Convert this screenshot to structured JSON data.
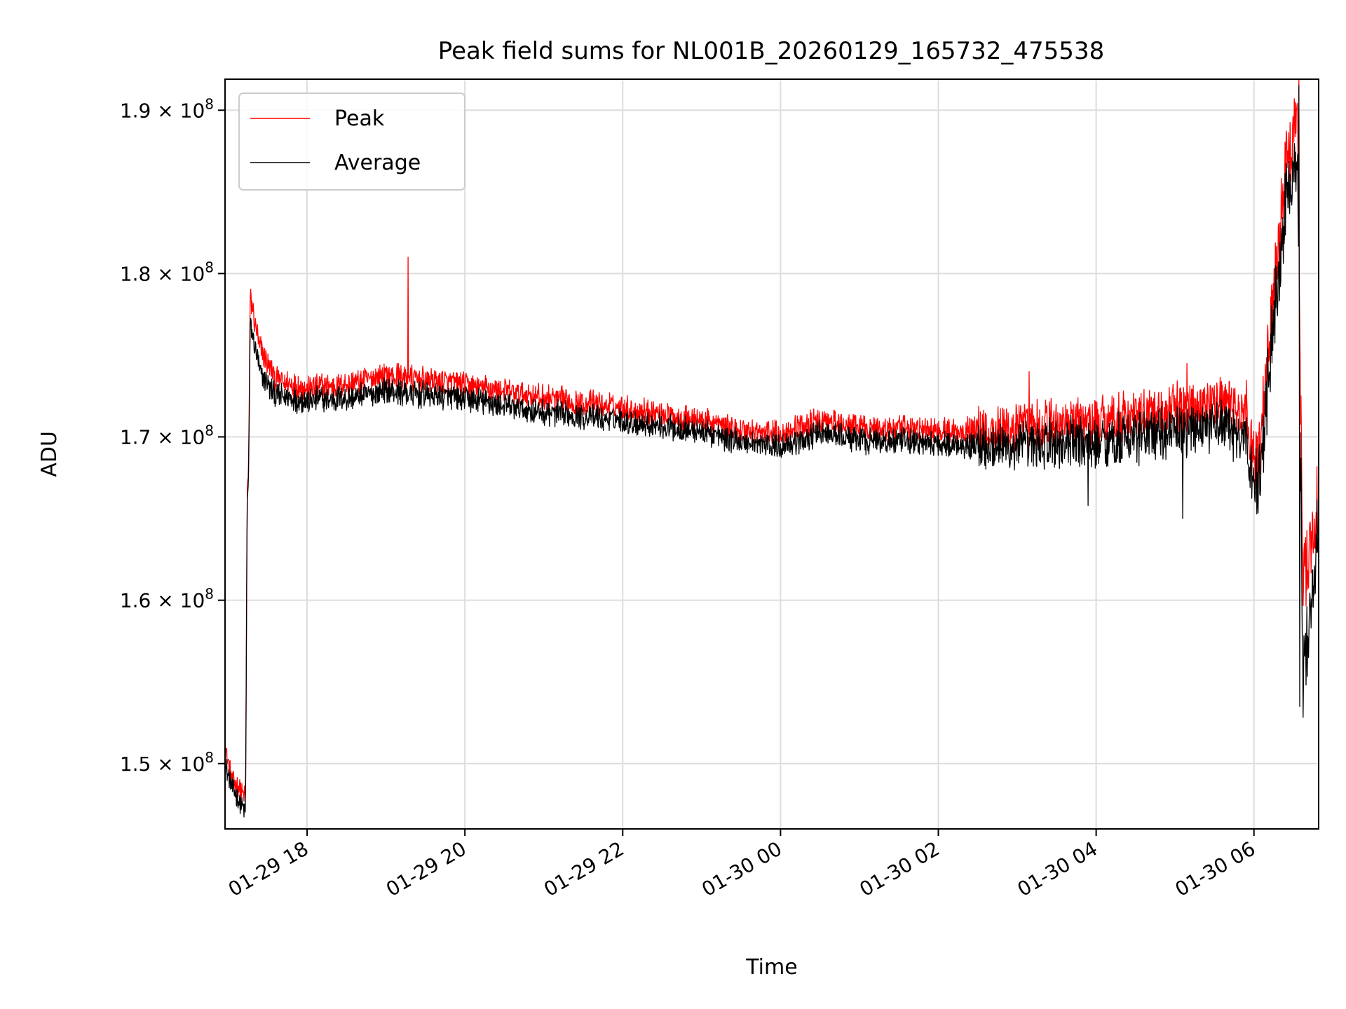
{
  "chart_data": {
    "type": "line",
    "title": "Peak field sums for NL001B_20260129_165732_475538",
    "xlabel": "Time",
    "ylabel": "ADU",
    "grid": true,
    "legend_position": "top-left",
    "x_range_hours": [
      -1.04,
      12.82
    ],
    "x_tick_labels": [
      "01-29 18",
      "01-29 20",
      "01-29 22",
      "01-30 00",
      "01-30 02",
      "01-30 04",
      "01-30 06"
    ],
    "x_tick_hours": [
      0,
      2,
      4,
      6,
      8,
      10,
      12
    ],
    "y_range": [
      146000000,
      191900000
    ],
    "y_ticks": [
      {
        "value": 150000000,
        "mantissa": "1.5"
      },
      {
        "value": 160000000,
        "mantissa": "1.6"
      },
      {
        "value": 170000000,
        "mantissa": "1.7"
      },
      {
        "value": 180000000,
        "mantissa": "1.8"
      },
      {
        "value": 190000000,
        "mantissa": "1.9"
      }
    ],
    "y_tick_suffix": "× 10",
    "y_tick_exponent": "8",
    "series": [
      {
        "name": "Peak",
        "color": "#ff0000",
        "trend_hours": [
          -1.04,
          -0.95,
          -0.78,
          -0.76,
          -0.74,
          -0.72,
          -0.6,
          -0.4,
          0.0,
          0.5,
          1.0,
          2.0,
          3.0,
          4.0,
          5.0,
          5.5,
          6.0,
          6.5,
          7.0,
          8.0,
          9.0,
          10.0,
          11.0,
          11.6,
          11.9,
          12.05,
          12.3,
          12.45,
          12.55,
          12.62,
          12.75,
          12.82
        ],
        "trend_values": [
          151000000,
          149000000,
          148000000,
          166000000,
          169000000,
          178500000,
          175500000,
          173500000,
          173000000,
          173200000,
          173800000,
          173200000,
          172400000,
          171800000,
          171000000,
          170400000,
          170200000,
          171000000,
          170600000,
          170400000,
          170500000,
          171000000,
          171600000,
          172200000,
          171200000,
          168000000,
          182000000,
          188000000,
          190500000,
          161000000,
          164000000,
          166000000
        ],
        "spikes": [
          {
            "hour": 1.28,
            "value": 181000000
          },
          {
            "hour": 12.57,
            "value": 192000000
          },
          {
            "hour": 9.15,
            "value": 174000000
          },
          {
            "hour": 11.15,
            "value": 174500000
          }
        ]
      },
      {
        "name": "Average",
        "color": "#000000",
        "trend_hours": [
          -1.04,
          -0.95,
          -0.78,
          -0.76,
          -0.74,
          -0.72,
          -0.6,
          -0.4,
          0.0,
          0.5,
          1.0,
          2.0,
          3.0,
          4.0,
          5.0,
          5.5,
          6.0,
          6.5,
          7.0,
          8.0,
          9.0,
          10.0,
          11.0,
          11.6,
          11.9,
          12.05,
          12.3,
          12.45,
          12.55,
          12.62,
          12.75,
          12.82
        ],
        "trend_values": [
          150000000,
          148500000,
          147000000,
          165500000,
          168000000,
          177000000,
          174000000,
          172500000,
          172200000,
          172400000,
          172800000,
          172300000,
          171500000,
          171000000,
          170300000,
          169700000,
          169400000,
          170200000,
          169800000,
          169600000,
          169400000,
          169700000,
          170300000,
          170800000,
          169700000,
          166500000,
          180000000,
          186000000,
          187500000,
          155000000,
          161000000,
          165000000
        ],
        "spikes": [
          {
            "hour": 12.57,
            "value": 191500000
          },
          {
            "hour": 12.58,
            "value": 153500000
          },
          {
            "hour": 11.1,
            "value": 165000000
          },
          {
            "hour": 9.9,
            "value": 165800000
          }
        ]
      }
    ]
  }
}
